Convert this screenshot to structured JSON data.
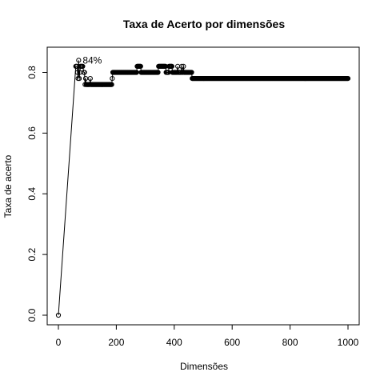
{
  "chart_data": {
    "type": "line",
    "title": "Taxa de Acerto por dimensões",
    "xlabel": "Dimensões",
    "ylabel": "Taxa de acerto",
    "xlim": [
      0,
      1000
    ],
    "ylim": [
      0,
      0.84
    ],
    "xticks": [
      0,
      200,
      400,
      600,
      800,
      1000
    ],
    "yticks": [
      0.0,
      0.2,
      0.4,
      0.6,
      0.8
    ],
    "xtick_labels": [
      "0",
      "200",
      "400",
      "600",
      "800",
      "1000"
    ],
    "ytick_labels": [
      "0.0",
      "0.2",
      "0.4",
      "0.6",
      "0.8"
    ],
    "grid": false,
    "annotation": {
      "text": "84%",
      "x": 70,
      "y": 0.84
    },
    "segments": [
      {
        "from": 0,
        "to": 0,
        "y": 0.0
      },
      {
        "from": 60,
        "to": 65,
        "y": 0.82
      },
      {
        "from": 66,
        "to": 66,
        "y": 0.8
      },
      {
        "from": 68,
        "to": 68,
        "y": 0.78
      },
      {
        "from": 70,
        "to": 70,
        "y": 0.84
      },
      {
        "from": 72,
        "to": 72,
        "y": 0.78
      },
      {
        "from": 74,
        "to": 74,
        "y": 0.8
      },
      {
        "from": 76,
        "to": 85,
        "y": 0.82
      },
      {
        "from": 88,
        "to": 88,
        "y": 0.8
      },
      {
        "from": 90,
        "to": 90,
        "y": 0.8
      },
      {
        "from": 92,
        "to": 92,
        "y": 0.76
      },
      {
        "from": 94,
        "to": 94,
        "y": 0.78
      },
      {
        "from": 96,
        "to": 108,
        "y": 0.76
      },
      {
        "from": 110,
        "to": 110,
        "y": 0.78
      },
      {
        "from": 112,
        "to": 185,
        "y": 0.76
      },
      {
        "from": 186,
        "to": 186,
        "y": 0.78
      },
      {
        "from": 188,
        "to": 270,
        "y": 0.8
      },
      {
        "from": 272,
        "to": 285,
        "y": 0.82
      },
      {
        "from": 286,
        "to": 345,
        "y": 0.8
      },
      {
        "from": 346,
        "to": 370,
        "y": 0.82
      },
      {
        "from": 372,
        "to": 380,
        "y": 0.8
      },
      {
        "from": 382,
        "to": 392,
        "y": 0.82
      },
      {
        "from": 394,
        "to": 410,
        "y": 0.8
      },
      {
        "from": 412,
        "to": 412,
        "y": 0.82
      },
      {
        "from": 414,
        "to": 425,
        "y": 0.8
      },
      {
        "from": 426,
        "to": 426,
        "y": 0.82
      },
      {
        "from": 428,
        "to": 430,
        "y": 0.8
      },
      {
        "from": 432,
        "to": 432,
        "y": 0.82
      },
      {
        "from": 434,
        "to": 460,
        "y": 0.8
      },
      {
        "from": 462,
        "to": 1000,
        "y": 0.78
      }
    ],
    "step": 2
  }
}
